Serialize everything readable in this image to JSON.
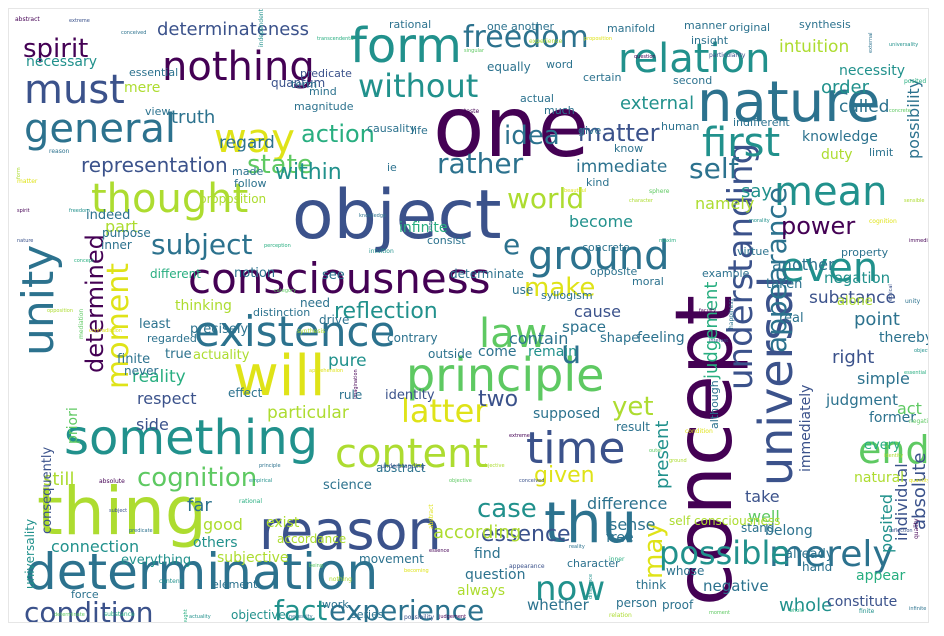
{
  "colors": {
    "c1": "#440154",
    "c2": "#3b528b",
    "c3": "#2c728e",
    "c4": "#21918c",
    "c5": "#28ae80",
    "c6": "#5ec962",
    "c7": "#addc30",
    "c8": "#dfe318"
  },
  "words": {
    "concept": "concept",
    "one": "one",
    "object": "object",
    "consciousness": "consciousness",
    "nature": "nature",
    "determination": "determination",
    "reason": "reason",
    "form": "form",
    "thing": "thing",
    "something": "something",
    "will": "will",
    "principle": "principle",
    "existence": "existence",
    "nothing": "nothing",
    "must": "must",
    "general": "general",
    "universal": "universal",
    "time": "time",
    "thu": "thu",
    "unity": "unity",
    "understanding": "understanding",
    "relation": "relation",
    "ground": "ground",
    "thought": "thought",
    "content": "content",
    "first": "first",
    "mean": "mean",
    "even": "even",
    "merely": "merely",
    "law": "law",
    "way": "way",
    "latter": "latter",
    "end": "end",
    "world": "world",
    "freedom": "freedom",
    "without": "without",
    "moment": "moment",
    "now": "now",
    "fact": "fact",
    "experience": "experience",
    "condition": "condition",
    "possible": "possible",
    "cognition": "cognition",
    "rather": "rather",
    "subject": "subject",
    "make": "make",
    "state": "state",
    "action": "action",
    "spirit": "spirit",
    "determinateness": "determinateness",
    "representation": "representation",
    "appearance": "appearance",
    "determined": "determined",
    "reflection": "reflection",
    "idea": "idea",
    "matter": "matter",
    "self": "self",
    "within": "within",
    "power": "power",
    "essence": "essence",
    "case": "case",
    "given": "given",
    "may": "may",
    "yet": "yet",
    "individual": "individual",
    "absolute": "absolute",
    "posited": "posited",
    "whole": "whole",
    "present": "present",
    "judgement": "judgement",
    "possibility": "possibility",
    "substance": "substance",
    "point": "point",
    "right": "right",
    "intuition": "intuition",
    "necessity": "necessity",
    "order": "order",
    "called": "called",
    "external": "external",
    "truth": "truth",
    "regard": "regard",
    "immediate": "immediate",
    "say": "say",
    "namely": "namely",
    "become": "become",
    "part": "part",
    "reality": "reality",
    "two": "two",
    "pure": "pure",
    "particular": "particular",
    "priori": "priori",
    "still": "still",
    "far": "far",
    "difference": "difference",
    "according": "according",
    "question": "question",
    "sense": "sense",
    "well": "well",
    "take": "take",
    "necessary": "necessary",
    "infinite": "infinite",
    "cause": "cause",
    "contain": "contain",
    "u": "u",
    "e": "e",
    "duty": "duty",
    "knowledge": "knowledge",
    "another": "another",
    "negation": "negation",
    "thereby": "thereby",
    "simple": "simple",
    "immediately": "immediately",
    "judgment": "judgment",
    "act": "act",
    "former": "former",
    "every": "every",
    "natural": "natural",
    "appear": "appear",
    "constitute": "constitute",
    "negative": "negative",
    "whether": "whether",
    "always": "always",
    "good": "good",
    "connection": "connection",
    "universality": "universality",
    "consequently": "consequently",
    "respect": "respect",
    "side": "side",
    "objective": "objective",
    "everything": "everything",
    "subjective": "subjective",
    "others": "others",
    "thinking": "thinking",
    "view": "view",
    "life": "life",
    "quantum": "quantum",
    "mere": "mere",
    "equally": "equally",
    "word": "word",
    "certain": "certain",
    "second": "second",
    "manifold": "manifold",
    "essential": "essential",
    "predicate": "predicate",
    "magnitude": "magnitude",
    "causality": "causality",
    "actual": "actual",
    "much": "much",
    "proposition": "proposition",
    "indeed": "indeed",
    "purpose": "purpose",
    "inner": "inner",
    "different": "different",
    "notion": "notion",
    "see": "see",
    "determinate": "determinate",
    "consist": "consist",
    "need": "need",
    "use": "use",
    "drive": "drive",
    "contrary": "contrary",
    "outside": "outside",
    "come": "come",
    "remain": "remain",
    "space": "space",
    "shape": "shape",
    "feeling": "feeling",
    "real": "real",
    "rule": "rule",
    "identity": "identity",
    "effect": "effect",
    "supposed": "supposed",
    "result": "result",
    "exist": "exist",
    "element": "element",
    "accordance": "accordance",
    "abstract": "abstract",
    "science": "science",
    "movement": "movement",
    "find": "find",
    "free": "free",
    "belong": "belong",
    "give": "give",
    "know": "know",
    "human": "human",
    "kind": "kind",
    "precisely": "precisely",
    "regarded": "regarded",
    "least": "least",
    "true": "true",
    "actuality": "actuality",
    "finite": "finite",
    "never": "never",
    "mind": "mind",
    "term": "term",
    "made": "made",
    "follow": "follow",
    "ie": "ie",
    "self_consciousness": "self consciousness",
    "proof": "proof",
    "person": "person",
    "think": "think",
    "work": "work",
    "series": "series",
    "hand": "hand",
    "already": "already",
    "alone": "alone",
    "taken": "taken",
    "example": "example",
    "character": "character",
    "stand": "stand",
    "although": "although",
    "opposite": "opposite",
    "moral": "moral",
    "distinction": "distinction",
    "force": "force",
    "syllogism": "syllogism",
    "whose": "whose",
    "concrete": "concrete",
    "virtue": "virtue",
    "limit": "limit",
    "property": "property",
    "indifferent": "indifferent",
    "rational": "rational",
    "insight": "insight",
    "original": "original",
    "one_another": "one another",
    "synthesis": "synthesis",
    "manner": "manner",
    "tiny": [
      "abstract",
      "extreme",
      "conceived",
      "independent",
      "transcendental",
      "singular",
      "experience",
      "proposition",
      "question",
      "particularity",
      "external",
      "universality",
      "posited",
      "concrete",
      "sensible",
      "cognition",
      "immediacy",
      "ethical",
      "unity",
      "object",
      "essential",
      "negative",
      "identity",
      "quantity",
      "quality",
      "reflection",
      "infinite",
      "finite",
      "whole",
      "moment",
      "relation",
      "logical",
      "judgement",
      "possibility",
      "necessity",
      "actuality",
      "substance",
      "determinate",
      "form",
      "matter",
      "spirit",
      "nature",
      "reason",
      "freedom",
      "concept",
      "mediation",
      "opposition",
      "contradiction",
      "absolute",
      "subject",
      "predicate",
      "content",
      "thought",
      "being",
      "nothing",
      "becoming",
      "essence",
      "appearance",
      "reality",
      "difference",
      "inner",
      "outer",
      "ground",
      "condition",
      "faculty",
      "interest",
      "happiness",
      "morality",
      "maxim",
      "sphere",
      "character",
      "beautiful",
      "taste",
      "critique",
      "knowledge",
      "intuition",
      "perception",
      "category",
      "synthesis",
      "apprehension",
      "imagination",
      "understanding",
      "principle",
      "empirical",
      "rational",
      "objective",
      "subjective"
    ]
  }
}
